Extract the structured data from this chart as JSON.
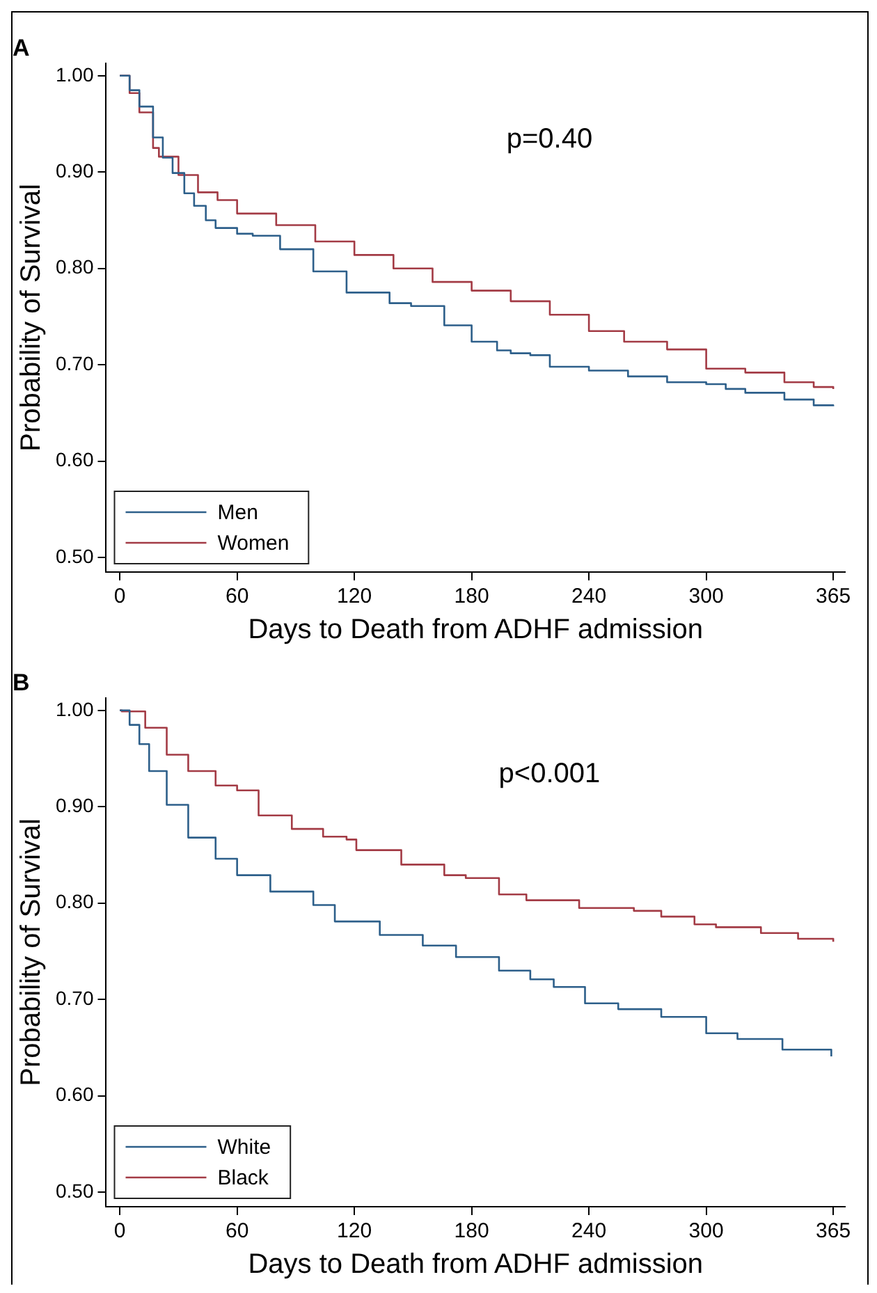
{
  "chart_data": [
    {
      "type": "step",
      "title": "A",
      "xlabel": "Days to Death from ADHF admission",
      "ylabel": "Probability of Survival",
      "annotations": [
        "p=0.40"
      ],
      "xlim": [
        -7,
        371
      ],
      "xticks": [
        0,
        60,
        120,
        180,
        240,
        300,
        365
      ],
      "ylim": [
        0.485,
        1.013
      ],
      "yticks": [
        {
          "value": 0.5,
          "label": "0.50"
        },
        {
          "value": 0.6,
          "label": "0.60"
        },
        {
          "value": 0.7,
          "label": "0.70"
        },
        {
          "value": 0.8,
          "label": "0.80"
        },
        {
          "value": 0.9,
          "label": "0.90"
        },
        {
          "value": 1,
          "label": "1.00"
        }
      ],
      "grid": false,
      "legend": "bottom left",
      "marker": "none",
      "series": [
        {
          "name": "Men",
          "color": "#2d5f8a",
          "x": [
            0,
            5,
            10,
            17,
            22,
            27,
            33,
            38,
            44,
            49,
            60,
            68,
            82,
            99,
            116,
            138,
            149,
            166,
            180,
            193,
            200,
            210,
            220,
            240,
            260,
            280,
            300,
            310,
            320,
            340,
            355,
            365
          ],
          "values": [
            1.0,
            0.985,
            0.968,
            0.936,
            0.915,
            0.899,
            0.878,
            0.865,
            0.85,
            0.842,
            0.836,
            0.834,
            0.82,
            0.797,
            0.775,
            0.764,
            0.761,
            0.741,
            0.724,
            0.715,
            0.712,
            0.71,
            0.698,
            0.694,
            0.688,
            0.682,
            0.68,
            0.675,
            0.671,
            0.664,
            0.658,
            0.657
          ]
        },
        {
          "name": "Women",
          "color": "#a33b45",
          "x": [
            0,
            5,
            10,
            17,
            20,
            30,
            40,
            50,
            60,
            80,
            100,
            120,
            140,
            160,
            180,
            200,
            220,
            240,
            258,
            280,
            300,
            320,
            340,
            355,
            365
          ],
          "values": [
            1.0,
            0.982,
            0.962,
            0.925,
            0.916,
            0.897,
            0.879,
            0.871,
            0.857,
            0.845,
            0.828,
            0.814,
            0.8,
            0.786,
            0.777,
            0.766,
            0.752,
            0.735,
            0.724,
            0.716,
            0.696,
            0.692,
            0.682,
            0.677,
            0.675
          ]
        }
      ]
    },
    {
      "type": "step",
      "title": "B",
      "xlabel": "Days to Death from ADHF admission",
      "ylabel": "Probability of Survival",
      "annotations": [
        "p<0.001"
      ],
      "xlim": [
        -7,
        371
      ],
      "xticks": [
        0,
        60,
        120,
        180,
        240,
        300,
        365
      ],
      "ylim": [
        0.485,
        1.013
      ],
      "yticks": [
        {
          "value": 0.5,
          "label": "0.50"
        },
        {
          "value": 0.6,
          "label": "0.60"
        },
        {
          "value": 0.7,
          "label": "0.70"
        },
        {
          "value": 0.8,
          "label": "0.80"
        },
        {
          "value": 0.9,
          "label": "0.90"
        },
        {
          "value": 1,
          "label": "1.00"
        }
      ],
      "grid": false,
      "legend": "bottom left",
      "marker": "none",
      "series": [
        {
          "name": "White",
          "color": "#2d5f8a",
          "x": [
            0,
            5,
            10,
            15,
            24,
            35,
            49,
            60,
            77,
            99,
            110,
            133,
            155,
            172,
            194,
            210,
            222,
            238,
            255,
            277,
            300,
            316,
            339,
            364
          ],
          "values": [
            1.0,
            0.985,
            0.965,
            0.937,
            0.902,
            0.868,
            0.846,
            0.829,
            0.812,
            0.798,
            0.781,
            0.767,
            0.756,
            0.744,
            0.73,
            0.721,
            0.713,
            0.696,
            0.69,
            0.682,
            0.665,
            0.659,
            0.648,
            0.641
          ]
        },
        {
          "name": "Black",
          "color": "#a33b45",
          "x": [
            0,
            1,
            13,
            24,
            35,
            49,
            60,
            71,
            88,
            104,
            116,
            121,
            144,
            166,
            177,
            194,
            208,
            235,
            263,
            277,
            294,
            305,
            328,
            347,
            365
          ],
          "values": [
            1.0,
            0.999,
            0.982,
            0.954,
            0.937,
            0.922,
            0.917,
            0.891,
            0.877,
            0.869,
            0.866,
            0.855,
            0.84,
            0.829,
            0.826,
            0.809,
            0.803,
            0.795,
            0.792,
            0.786,
            0.778,
            0.775,
            0.769,
            0.763,
            0.76
          ]
        }
      ]
    }
  ]
}
